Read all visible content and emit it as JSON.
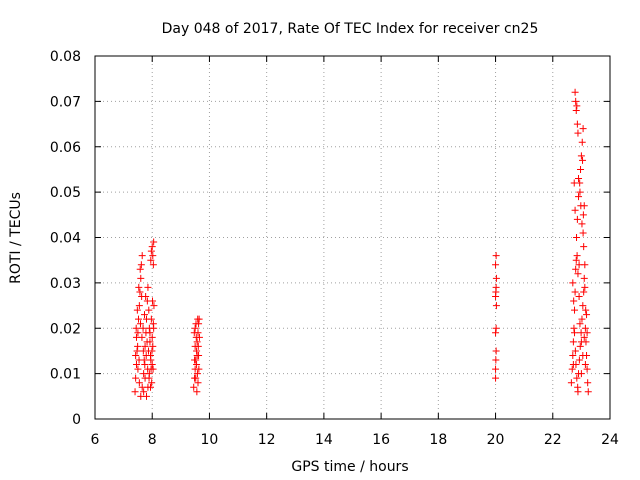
{
  "chart_data": {
    "type": "scatter",
    "title": "Day 048 of 2017, Rate Of TEC Index for receiver cn25",
    "xlabel": "GPS time / hours",
    "ylabel": "ROTI / TECUs",
    "xlim": [
      6,
      24
    ],
    "ylim": [
      0,
      0.08
    ],
    "x_ticks": [
      6,
      8,
      10,
      12,
      14,
      16,
      18,
      20,
      22,
      24
    ],
    "y_ticks": [
      0,
      0.01,
      0.02,
      0.03,
      0.04,
      0.05,
      0.06,
      0.07,
      0.08
    ],
    "x_tick_labels": [
      "6",
      "8",
      "10",
      "12",
      "14",
      "16",
      "18",
      "20",
      "22",
      "24"
    ],
    "y_tick_labels": [
      "0",
      "0.01",
      "0.02",
      "0.03",
      "0.04",
      "0.05",
      "0.06",
      "0.07",
      "0.08"
    ],
    "grid": true,
    "marker": "+",
    "series": [
      {
        "name": "ROTI",
        "color": "#ff0000",
        "points": [
          [
            7.4,
            0.006
          ],
          [
            7.42,
            0.009
          ],
          [
            7.45,
            0.012
          ],
          [
            7.47,
            0.015
          ],
          [
            7.5,
            0.019
          ],
          [
            7.52,
            0.022
          ],
          [
            7.55,
            0.025
          ],
          [
            7.57,
            0.028
          ],
          [
            7.6,
            0.031
          ],
          [
            7.62,
            0.034
          ],
          [
            7.65,
            0.036
          ],
          [
            7.45,
            0.018
          ],
          [
            7.48,
            0.024
          ],
          [
            7.53,
            0.029
          ],
          [
            7.58,
            0.033
          ],
          [
            7.63,
            0.027
          ],
          [
            7.42,
            0.014
          ],
          [
            7.5,
            0.011
          ],
          [
            7.55,
            0.008
          ],
          [
            7.6,
            0.005
          ],
          [
            7.65,
            0.007
          ],
          [
            7.7,
            0.01
          ],
          [
            7.72,
            0.013
          ],
          [
            7.75,
            0.016
          ],
          [
            7.78,
            0.019
          ],
          [
            7.8,
            0.022
          ],
          [
            7.83,
            0.026
          ],
          [
            7.85,
            0.029
          ],
          [
            7.88,
            0.024
          ],
          [
            7.9,
            0.02
          ],
          [
            7.92,
            0.017
          ],
          [
            7.94,
            0.014
          ],
          [
            7.96,
            0.011
          ],
          [
            7.98,
            0.008
          ],
          [
            8.0,
            0.012
          ],
          [
            8.02,
            0.016
          ],
          [
            8.04,
            0.021
          ],
          [
            8.06,
            0.025
          ],
          [
            7.7,
            0.006
          ],
          [
            7.75,
            0.009
          ],
          [
            7.8,
            0.005
          ],
          [
            7.85,
            0.007
          ],
          [
            7.9,
            0.01
          ],
          [
            7.95,
            0.013
          ],
          [
            8.0,
            0.018
          ],
          [
            7.68,
            0.02
          ],
          [
            7.73,
            0.023
          ],
          [
            7.77,
            0.027
          ],
          [
            7.82,
            0.017
          ],
          [
            7.87,
            0.015
          ],
          [
            7.92,
            0.019
          ],
          [
            7.97,
            0.022
          ],
          [
            8.01,
            0.026
          ],
          [
            8.05,
            0.02
          ],
          [
            7.44,
            0.02
          ],
          [
            7.49,
            0.016
          ],
          [
            7.54,
            0.013
          ],
          [
            7.59,
            0.021
          ],
          [
            7.64,
            0.018
          ],
          [
            7.69,
            0.015
          ],
          [
            7.74,
            0.012
          ],
          [
            7.79,
            0.014
          ],
          [
            7.84,
            0.011
          ],
          [
            7.89,
            0.009
          ],
          [
            7.94,
            0.007
          ],
          [
            7.99,
            0.015
          ],
          [
            8.03,
            0.011
          ],
          [
            7.95,
            0.035
          ],
          [
            7.97,
            0.037
          ],
          [
            8.0,
            0.038
          ],
          [
            8.02,
            0.036
          ],
          [
            8.04,
            0.034
          ],
          [
            8.05,
            0.039
          ],
          [
            9.45,
            0.007
          ],
          [
            9.48,
            0.009
          ],
          [
            9.5,
            0.011
          ],
          [
            9.52,
            0.013
          ],
          [
            9.55,
            0.015
          ],
          [
            9.57,
            0.017
          ],
          [
            9.6,
            0.019
          ],
          [
            9.62,
            0.021
          ],
          [
            9.64,
            0.022
          ],
          [
            9.5,
            0.016
          ],
          [
            9.55,
            0.012
          ],
          [
            9.6,
            0.008
          ],
          [
            9.47,
            0.019
          ],
          [
            9.53,
            0.021
          ],
          [
            9.58,
            0.01
          ],
          [
            9.62,
            0.014
          ],
          [
            9.65,
            0.018
          ],
          [
            9.5,
            0.02
          ],
          [
            9.56,
            0.006
          ],
          [
            9.61,
            0.016
          ],
          [
            9.48,
            0.013
          ],
          [
            9.63,
            0.011
          ],
          [
            9.54,
            0.018
          ],
          [
            9.59,
            0.022
          ],
          [
            9.52,
            0.009
          ],
          [
            9.57,
            0.014
          ],
          [
            20.0,
            0.009
          ],
          [
            20.0,
            0.011
          ],
          [
            20.01,
            0.013
          ],
          [
            20.02,
            0.015
          ],
          [
            20.0,
            0.019
          ],
          [
            20.02,
            0.02
          ],
          [
            20.03,
            0.025
          ],
          [
            20.0,
            0.027
          ],
          [
            20.01,
            0.028
          ],
          [
            20.02,
            0.029
          ],
          [
            20.03,
            0.031
          ],
          [
            20.0,
            0.034
          ],
          [
            20.02,
            0.036
          ],
          [
            22.65,
            0.008
          ],
          [
            22.68,
            0.011
          ],
          [
            22.7,
            0.014
          ],
          [
            22.72,
            0.017
          ],
          [
            22.74,
            0.02
          ],
          [
            22.76,
            0.024
          ],
          [
            22.78,
            0.028
          ],
          [
            22.8,
            0.033
          ],
          [
            22.82,
            0.035
          ],
          [
            22.7,
            0.03
          ],
          [
            22.73,
            0.026
          ],
          [
            22.76,
            0.019
          ],
          [
            22.79,
            0.015
          ],
          [
            22.81,
            0.012
          ],
          [
            22.84,
            0.009
          ],
          [
            22.87,
            0.007
          ],
          [
            22.9,
            0.01
          ],
          [
            22.93,
            0.013
          ],
          [
            22.96,
            0.016
          ],
          [
            22.99,
            0.019
          ],
          [
            23.02,
            0.022
          ],
          [
            23.05,
            0.025
          ],
          [
            23.08,
            0.028
          ],
          [
            23.1,
            0.031
          ],
          [
            23.12,
            0.034
          ],
          [
            23.14,
            0.02
          ],
          [
            23.16,
            0.017
          ],
          [
            23.18,
            0.014
          ],
          [
            23.2,
            0.011
          ],
          [
            23.22,
            0.008
          ],
          [
            23.24,
            0.006
          ],
          [
            23.15,
            0.024
          ],
          [
            23.1,
            0.018
          ],
          [
            23.05,
            0.014
          ],
          [
            23.0,
            0.01
          ],
          [
            22.95,
            0.021
          ],
          [
            22.92,
            0.027
          ],
          [
            22.88,
            0.032
          ],
          [
            22.85,
            0.036
          ],
          [
            22.83,
            0.04
          ],
          [
            22.86,
            0.044
          ],
          [
            22.9,
            0.049
          ],
          [
            22.94,
            0.052
          ],
          [
            22.97,
            0.055
          ],
          [
            23.0,
            0.058
          ],
          [
            23.03,
            0.061
          ],
          [
            23.06,
            0.064
          ],
          [
            22.98,
            0.047
          ],
          [
            23.02,
            0.043
          ],
          [
            23.06,
            0.041
          ],
          [
            23.08,
            0.038
          ],
          [
            22.82,
            0.068
          ],
          [
            22.8,
            0.07
          ],
          [
            22.78,
            0.072
          ],
          [
            22.84,
            0.069
          ],
          [
            22.86,
            0.065
          ],
          [
            22.88,
            0.063
          ],
          [
            22.9,
            0.053
          ],
          [
            22.95,
            0.05
          ],
          [
            23.04,
            0.057
          ],
          [
            23.07,
            0.045
          ],
          [
            23.1,
            0.047
          ],
          [
            22.75,
            0.052
          ],
          [
            22.78,
            0.046
          ],
          [
            22.92,
            0.034
          ],
          [
            23.12,
            0.029
          ],
          [
            23.18,
            0.023
          ],
          [
            23.2,
            0.019
          ],
          [
            22.72,
            0.012
          ],
          [
            22.88,
            0.006
          ],
          [
            23.0,
            0.017
          ],
          [
            23.14,
            0.012
          ]
        ]
      }
    ]
  }
}
